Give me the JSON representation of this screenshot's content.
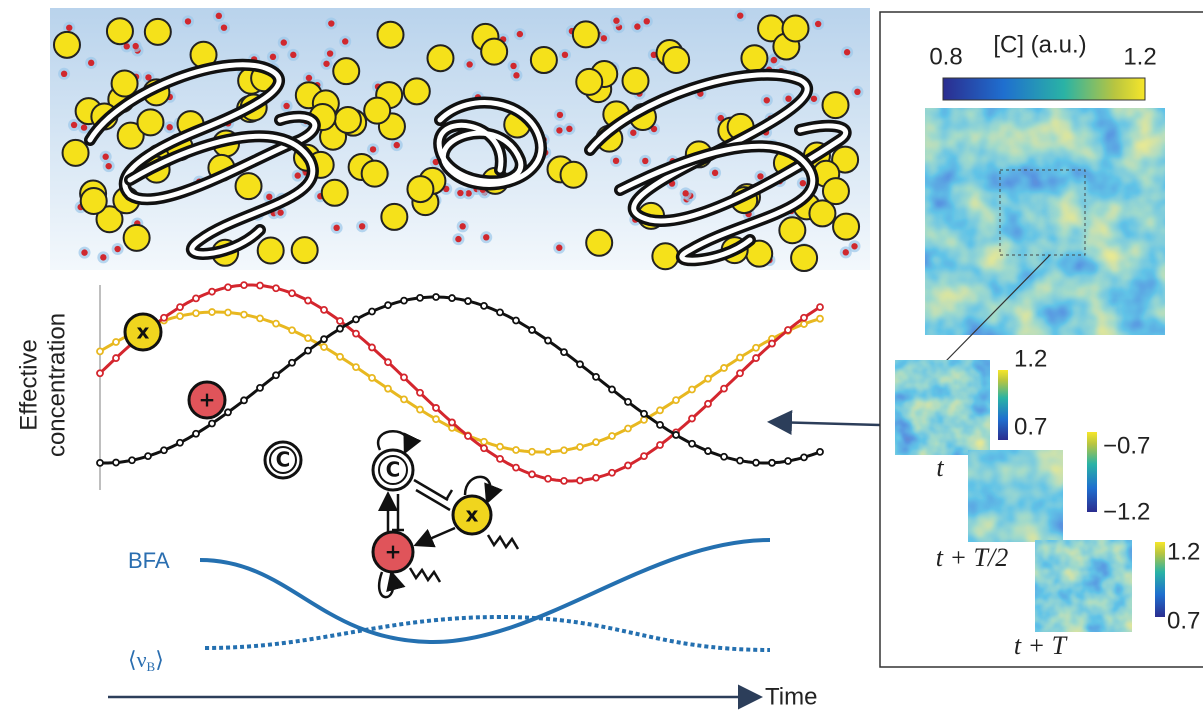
{
  "concentration_plot": {
    "y_label_line1": "Effective",
    "y_label_line2": "concentration",
    "species": {
      "x": "x",
      "plus": "+",
      "c": "C"
    }
  },
  "network": {
    "c": "C",
    "x": "x",
    "plus": "+"
  },
  "bfa_label": "BFA",
  "nu_label": "⟨ν",
  "nu_sub": "B",
  "nu_close": "⟩",
  "time_label": "Time",
  "heatmap": {
    "title": "[C] (a.u.)",
    "min": "0.8",
    "max": "1.2",
    "snapshots": [
      {
        "label": "t",
        "max": "1.2",
        "min": "0.7"
      },
      {
        "label": "t + T/2",
        "max": "−0.7",
        "min": "−1.2"
      },
      {
        "label": "t + T",
        "max": "1.2",
        "min": "0.7"
      }
    ]
  }
}
